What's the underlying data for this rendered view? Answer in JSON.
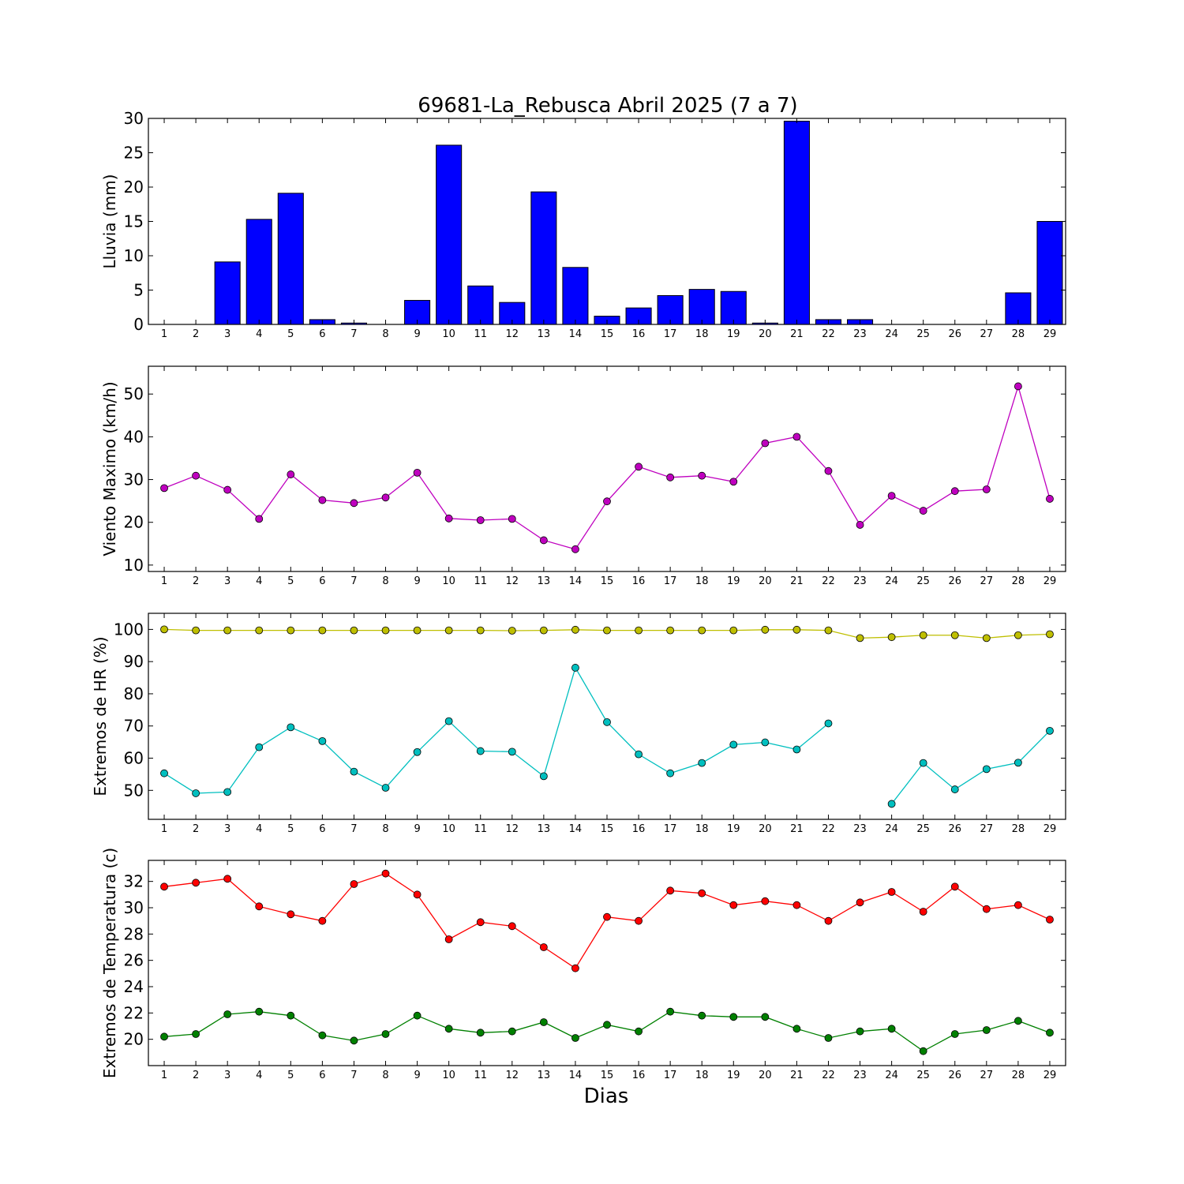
{
  "title": "69681-La_Rebusca Abril 2025  (7 a 7)",
  "xlabel": "Dias",
  "chart_data": [
    {
      "type": "bar",
      "ylabel": "Lluvia (mm)",
      "ylim": [
        0,
        30
      ],
      "yticks": [
        0,
        5,
        10,
        15,
        20,
        25,
        30
      ],
      "categories": [
        "1",
        "2",
        "3",
        "4",
        "5",
        "6",
        "7",
        "8",
        "9",
        "10",
        "11",
        "12",
        "13",
        "14",
        "15",
        "16",
        "17",
        "18",
        "19",
        "20",
        "21",
        "22",
        "23",
        "24",
        "25",
        "26",
        "27",
        "28",
        "29"
      ],
      "values": [
        0,
        0,
        9.1,
        15.3,
        19.1,
        0.7,
        0.2,
        0,
        3.5,
        26.1,
        5.6,
        3.2,
        19.3,
        8.3,
        1.2,
        2.4,
        4.2,
        5.1,
        4.8,
        0.2,
        29.6,
        0.7,
        0.7,
        0,
        0,
        0,
        0,
        4.6,
        15.0
      ],
      "color": "#0000ff"
    },
    {
      "type": "line",
      "ylabel": "Viento Maximo (km/h)",
      "ylim": [
        8.5,
        56.5
      ],
      "yticks": [
        10,
        20,
        30,
        40,
        50
      ],
      "x": [
        1,
        2,
        3,
        4,
        5,
        6,
        7,
        8,
        9,
        10,
        11,
        12,
        13,
        14,
        15,
        16,
        17,
        18,
        19,
        20,
        21,
        22,
        23,
        24,
        25,
        26,
        27,
        28,
        29
      ],
      "series": [
        {
          "color": "#bf00bf",
          "values": [
            28.0,
            30.9,
            27.6,
            20.8,
            31.2,
            25.2,
            24.5,
            25.8,
            31.6,
            20.9,
            20.5,
            20.8,
            15.8,
            13.7,
            24.9,
            33.0,
            30.5,
            30.9,
            29.5,
            38.5,
            40.0,
            32.0,
            19.4,
            26.2,
            22.7,
            27.3,
            27.7,
            51.8,
            25.5
          ]
        }
      ]
    },
    {
      "type": "line",
      "ylabel": "Extremos de HR (%)",
      "ylim": [
        41,
        105
      ],
      "yticks": [
        50,
        60,
        70,
        80,
        90,
        100
      ],
      "x": [
        1,
        2,
        3,
        4,
        5,
        6,
        7,
        8,
        9,
        10,
        11,
        12,
        13,
        14,
        15,
        16,
        17,
        18,
        19,
        20,
        21,
        22,
        23,
        24,
        25,
        26,
        27,
        28,
        29
      ],
      "series": [
        {
          "color": "#bfbf00",
          "values": [
            100,
            99.7,
            99.7,
            99.7,
            99.7,
            99.7,
            99.7,
            99.7,
            99.7,
            99.7,
            99.7,
            99.6,
            99.7,
            99.9,
            99.7,
            99.7,
            99.7,
            99.7,
            99.7,
            99.9,
            99.9,
            99.7,
            97.3,
            97.6,
            98.2,
            98.2,
            97.3,
            98.2,
            98.5
          ]
        },
        {
          "color": "#00bfbf",
          "values": [
            55.3,
            49.1,
            49.5,
            63.4,
            69.6,
            65.3,
            55.8,
            50.8,
            61.9,
            71.5,
            62.2,
            62.0,
            54.4,
            88.1,
            71.2,
            61.2,
            55.3,
            58.5,
            64.2,
            64.9,
            62.7,
            70.8,
            null,
            45.8,
            58.5,
            50.3,
            56.6,
            58.6,
            68.5
          ]
        }
      ]
    },
    {
      "type": "line",
      "ylabel": "Extremos de Temperatura (c)",
      "ylim": [
        18,
        33.6
      ],
      "yticks": [
        20,
        22,
        24,
        26,
        28,
        30,
        32
      ],
      "x": [
        1,
        2,
        3,
        4,
        5,
        6,
        7,
        8,
        9,
        10,
        11,
        12,
        13,
        14,
        15,
        16,
        17,
        18,
        19,
        20,
        21,
        22,
        23,
        24,
        25,
        26,
        27,
        28,
        29
      ],
      "series": [
        {
          "color": "#ff0000",
          "values": [
            31.6,
            31.9,
            32.2,
            30.1,
            29.5,
            29.0,
            31.8,
            32.6,
            31.0,
            27.6,
            28.9,
            28.6,
            27.0,
            25.4,
            29.3,
            29.0,
            31.3,
            31.1,
            30.2,
            30.5,
            30.2,
            29.0,
            30.4,
            31.2,
            29.7,
            31.6,
            29.9,
            30.2,
            29.1
          ]
        },
        {
          "color": "#008000",
          "values": [
            20.2,
            20.4,
            21.9,
            22.1,
            21.8,
            20.3,
            19.9,
            20.4,
            21.8,
            20.8,
            20.5,
            20.6,
            21.3,
            20.1,
            21.1,
            20.6,
            22.1,
            21.8,
            21.7,
            21.7,
            20.8,
            20.1,
            20.6,
            20.8,
            19.1,
            20.4,
            20.7,
            21.4,
            20.5
          ]
        }
      ]
    }
  ]
}
